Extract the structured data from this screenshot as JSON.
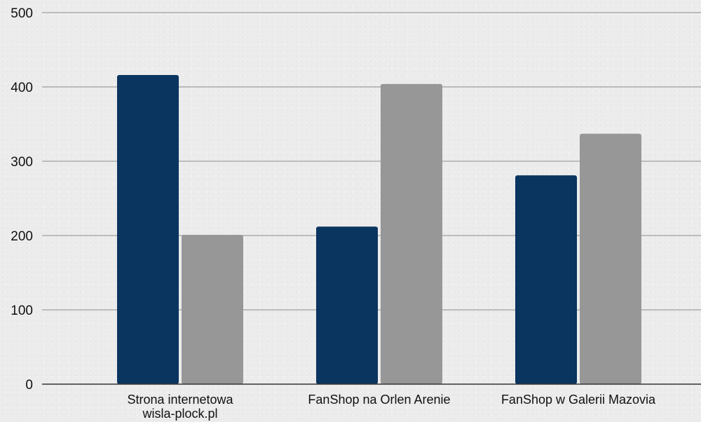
{
  "chart_data": {
    "type": "bar",
    "title": "",
    "xlabel": "",
    "ylabel": "",
    "ylim": [
      0,
      500
    ],
    "yticks": [
      0,
      100,
      200,
      300,
      400,
      500
    ],
    "grid": true,
    "legend": "none",
    "categories": [
      [
        "Strona internetowa",
        "wisla-plock.pl"
      ],
      [
        "FanShop na Orlen Arenie"
      ],
      [
        "FanShop w Galerii Mazovia"
      ]
    ],
    "series": [
      {
        "color": "#0a355f",
        "values": [
          416,
          212,
          281
        ]
      },
      {
        "color": "#979797",
        "values": [
          201,
          404,
          337
        ]
      }
    ],
    "colors": {
      "grid": "#9e9e9e",
      "axis": "#333333"
    }
  }
}
